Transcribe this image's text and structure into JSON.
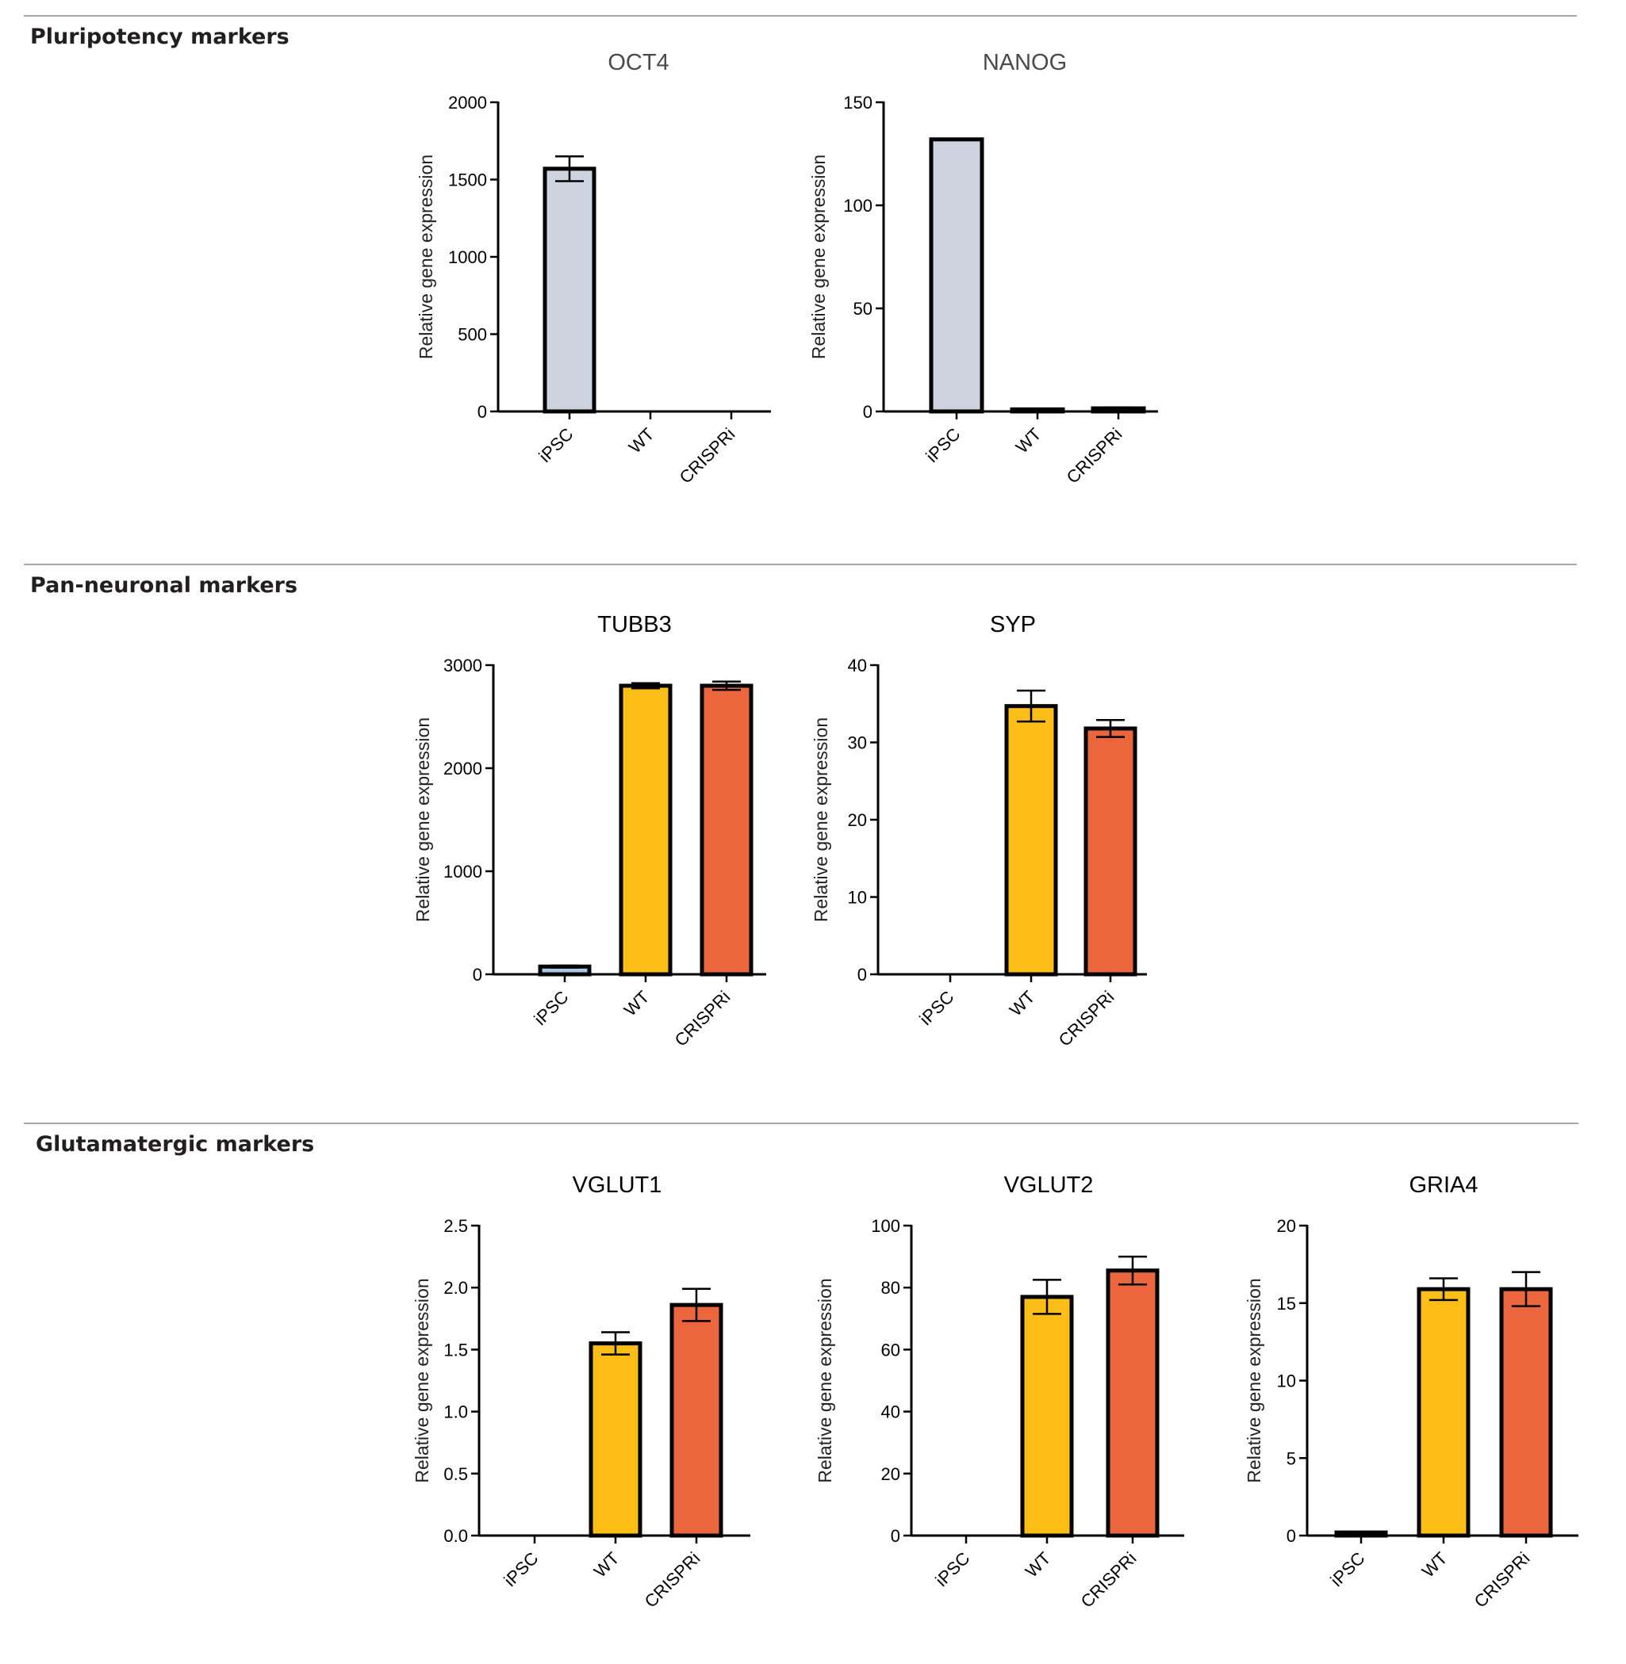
{
  "sections": [
    {
      "title": "Pluripotency markers"
    },
    {
      "title": "Pan-neuronal markers"
    },
    {
      "title": "Glutamatergic markers"
    }
  ],
  "colors": {
    "ipsc_grey": "#cdd3df",
    "ipsc_blue": "#a8c8e4",
    "wt": "#fbbd16",
    "crispri": "#eb663c"
  },
  "chart_data": [
    {
      "type": "bar",
      "section": 0,
      "title": "OCT4",
      "ylabel": "Relative gene expression",
      "categories": [
        "iPSC",
        "WT",
        "CRISPRi"
      ],
      "values": [
        1570,
        0,
        0
      ],
      "errors": [
        80,
        0,
        0
      ],
      "ylim": [
        0,
        2000
      ],
      "yticks": [
        "0",
        "500",
        "1000",
        "1500",
        "2000"
      ],
      "tick_values": [
        0,
        500,
        1000,
        1500,
        2000
      ]
    },
    {
      "type": "bar",
      "section": 0,
      "title": "NANOG",
      "ylabel": "Relative gene expression",
      "categories": [
        "iPSC",
        "WT",
        "CRISPRi"
      ],
      "values": [
        132,
        1.0,
        1.5
      ],
      "errors": [
        0,
        0.3,
        0.4
      ],
      "ylim": [
        0,
        150
      ],
      "yticks": [
        "0",
        "50",
        "100",
        "150"
      ],
      "tick_values": [
        0,
        50,
        100,
        150
      ]
    },
    {
      "type": "bar",
      "section": 1,
      "title": "TUBB3",
      "ylabel": "Relative gene expression",
      "categories": [
        "iPSC",
        "WT",
        "CRISPRi"
      ],
      "values": [
        75,
        2800,
        2800
      ],
      "errors": [
        10,
        25,
        40
      ],
      "ylim": [
        0,
        3000
      ],
      "yticks": [
        "0",
        "1000",
        "2000",
        "3000"
      ],
      "tick_values": [
        0,
        1000,
        2000,
        3000
      ]
    },
    {
      "type": "bar",
      "section": 1,
      "title": "SYP",
      "ylabel": "Relative gene expression",
      "categories": [
        "iPSC",
        "WT",
        "CRISPRi"
      ],
      "values": [
        0,
        34.7,
        31.8
      ],
      "errors": [
        0,
        2.0,
        1.1
      ],
      "ylim": [
        0,
        40
      ],
      "yticks": [
        "0",
        "10",
        "20",
        "30",
        "40"
      ],
      "tick_values": [
        0,
        10,
        20,
        30,
        40
      ]
    },
    {
      "type": "bar",
      "section": 2,
      "title": "VGLUT1",
      "ylabel": "Relative gene expression",
      "categories": [
        "iPSC",
        "WT",
        "CRISPRi"
      ],
      "values": [
        0,
        1.55,
        1.86
      ],
      "errors": [
        0,
        0.09,
        0.13
      ],
      "ylim": [
        0,
        2.5
      ],
      "yticks": [
        "0.0",
        "0.5",
        "1.0",
        "1.5",
        "2.0",
        "2.5"
      ],
      "tick_values": [
        0,
        0.5,
        1.0,
        1.5,
        2.0,
        2.5
      ]
    },
    {
      "type": "bar",
      "section": 2,
      "title": "VGLUT2",
      "ylabel": "Relative gene expression",
      "categories": [
        "iPSC",
        "WT",
        "CRISPRi"
      ],
      "values": [
        0,
        77,
        85.5
      ],
      "errors": [
        0,
        5.5,
        4.5
      ],
      "ylim": [
        0,
        100
      ],
      "yticks": [
        "0",
        "20",
        "40",
        "60",
        "80",
        "100"
      ],
      "tick_values": [
        0,
        20,
        40,
        60,
        80,
        100
      ]
    },
    {
      "type": "bar",
      "section": 2,
      "title": "GRIA4",
      "ylabel": "Relative gene expression",
      "categories": [
        "iPSC",
        "WT",
        "CRISPRi"
      ],
      "values": [
        0.2,
        15.9,
        15.9
      ],
      "errors": [
        0.05,
        0.7,
        1.1
      ],
      "ylim": [
        0,
        20
      ],
      "yticks": [
        "0",
        "5",
        "10",
        "15",
        "20"
      ],
      "tick_values": [
        0,
        5,
        10,
        15,
        20
      ]
    }
  ]
}
